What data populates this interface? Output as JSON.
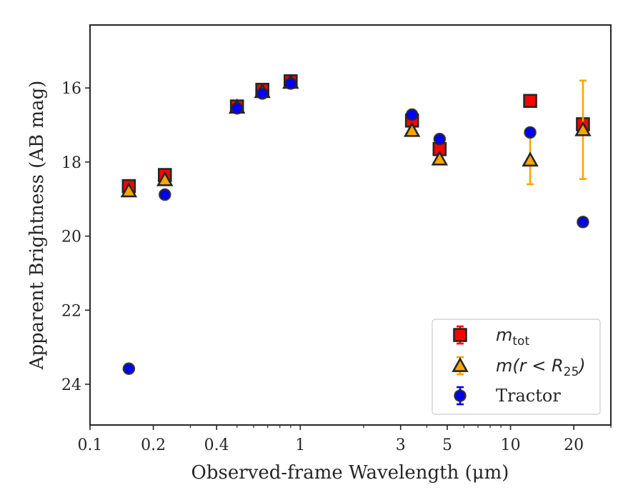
{
  "chart_data": {
    "type": "scatter",
    "xlabel": "Observed-frame Wavelength (μm)",
    "ylabel": "Apparent Brightness (AB mag)",
    "xscale": "log",
    "xlim": [
      0.1,
      30
    ],
    "ylim": [
      25.1,
      14.3
    ],
    "y_inverted": true,
    "grid": false,
    "legend_position": "lower-right",
    "x_ticks": [
      0.1,
      0.2,
      0.4,
      1,
      3,
      5,
      10,
      20
    ],
    "x_tick_labels": [
      "0.1",
      "0.2",
      "0.4",
      "1",
      "3",
      "5",
      "10",
      "20"
    ],
    "y_ticks": [
      16,
      18,
      20,
      22,
      24
    ],
    "y_tick_labels": [
      "16",
      "18",
      "20",
      "22",
      "24"
    ],
    "series": [
      {
        "name": "m_tot",
        "legend_main": "m",
        "legend_sub": "tot",
        "marker": "square",
        "color": "#ff0000",
        "edge_color": "#262626",
        "points": [
          {
            "x": 0.153,
            "y": 18.65,
            "err": 0.08
          },
          {
            "x": 0.227,
            "y": 18.35,
            "err": 0.08
          },
          {
            "x": 0.5,
            "y": 16.5,
            "err": 0.06
          },
          {
            "x": 0.66,
            "y": 16.05,
            "err": 0.06
          },
          {
            "x": 0.9,
            "y": 15.82,
            "err": 0.06
          },
          {
            "x": 3.4,
            "y": 16.88,
            "err": 0.06
          },
          {
            "x": 4.6,
            "y": 17.65,
            "err": 0.06
          },
          {
            "x": 12.4,
            "y": 16.35,
            "err": 0.05
          },
          {
            "x": 22.1,
            "y": 16.98,
            "err": 0.05
          }
        ]
      },
      {
        "name": "m(r < R25)",
        "legend_main": "m(r < R",
        "legend_sub": "25",
        "legend_tail": ")",
        "marker": "triangle",
        "color": "#ffa500",
        "edge_color": "#262626",
        "points": [
          {
            "x": 0.153,
            "y": 18.78,
            "err": 0.05
          },
          {
            "x": 0.227,
            "y": 18.48,
            "err": 0.05
          },
          {
            "x": 0.5,
            "y": 16.52,
            "err": 0.05
          },
          {
            "x": 0.66,
            "y": 16.1,
            "err": 0.05
          },
          {
            "x": 0.9,
            "y": 15.85,
            "err": 0.05
          },
          {
            "x": 3.4,
            "y": 17.15,
            "err": 0.05
          },
          {
            "x": 4.6,
            "y": 17.92,
            "err": 0.05
          },
          {
            "x": 12.4,
            "y": 17.95,
            "err": 0.65
          },
          {
            "x": 22.1,
            "y": 17.13,
            "err": 1.33
          }
        ]
      },
      {
        "name": "Tractor",
        "marker": "circle",
        "color": "#0000ff",
        "edge_color": "#262626",
        "points": [
          {
            "x": 0.153,
            "y": 23.58,
            "err": 0.05
          },
          {
            "x": 0.227,
            "y": 18.88,
            "err": 0.05
          },
          {
            "x": 0.5,
            "y": 16.55,
            "err": 0.04
          },
          {
            "x": 0.66,
            "y": 16.15,
            "err": 0.04
          },
          {
            "x": 0.9,
            "y": 15.88,
            "err": 0.04
          },
          {
            "x": 3.4,
            "y": 16.72,
            "err": 0.04
          },
          {
            "x": 4.6,
            "y": 17.38,
            "err": 0.04
          },
          {
            "x": 12.4,
            "y": 17.2,
            "err": 0.04
          },
          {
            "x": 22.1,
            "y": 19.62,
            "err": 0.04
          }
        ]
      }
    ]
  }
}
